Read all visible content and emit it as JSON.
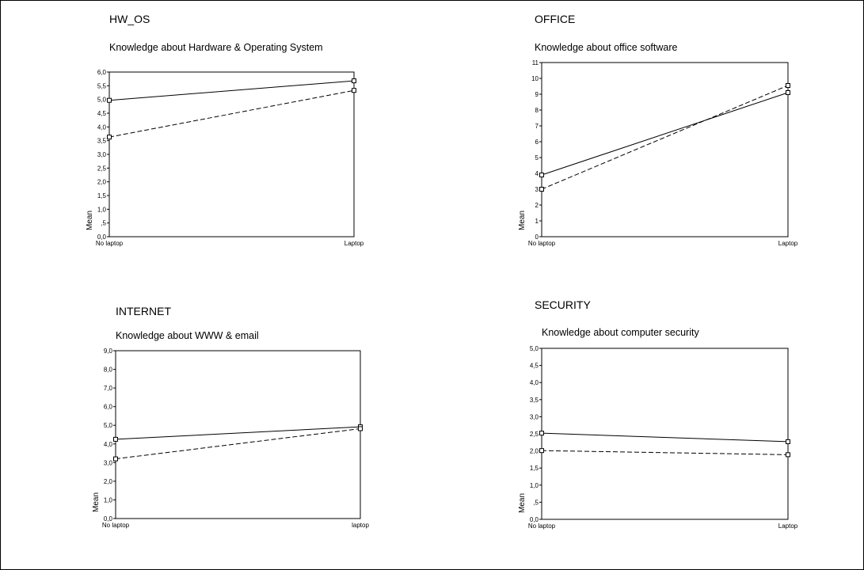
{
  "chart_data": [
    {
      "type": "line",
      "title": "HW_OS",
      "subtitle": "Knowledge about Hardware & Operating System",
      "ylabel": "Mean",
      "categories": [
        "No laptop",
        "Laptop"
      ],
      "ylim": [
        0,
        6
      ],
      "yticks": [
        "0,0",
        ",5",
        "1,0",
        "1,5",
        "2,0",
        "2,5",
        "3,0",
        "3,5",
        "4,0",
        "4,5",
        "5,0",
        "5,5",
        "6,0"
      ],
      "series": [
        {
          "style": "solid",
          "values": [
            4.97,
            5.68
          ]
        },
        {
          "style": "dashed",
          "values": [
            3.63,
            5.33
          ]
        }
      ]
    },
    {
      "type": "line",
      "title": "OFFICE",
      "subtitle": "Knowledge about office software",
      "ylabel": "Mean",
      "categories": [
        "No laptop",
        "Laptop"
      ],
      "ylim": [
        0,
        11
      ],
      "yticks": [
        "0",
        "1",
        "2",
        "3",
        "4",
        "5",
        "6",
        "7",
        "8",
        "9",
        "10",
        "11"
      ],
      "series": [
        {
          "style": "solid",
          "values": [
            3.9,
            9.1
          ]
        },
        {
          "style": "dashed",
          "values": [
            3.0,
            9.55
          ]
        }
      ]
    },
    {
      "type": "line",
      "title": "INTERNET",
      "subtitle": "Knowledge about WWW & email",
      "ylabel": "Mean",
      "categories": [
        "No laptop",
        "laptop"
      ],
      "ylim": [
        0,
        9
      ],
      "yticks": [
        "0,0",
        "1,0",
        "2,0",
        "3,0",
        "4,0",
        "5,0",
        "6,0",
        "7,0",
        "8,0",
        "9,0"
      ],
      "series": [
        {
          "style": "solid",
          "values": [
            4.25,
            4.92
          ]
        },
        {
          "style": "dashed",
          "values": [
            3.2,
            4.82
          ]
        }
      ]
    },
    {
      "type": "line",
      "title": "SECURITY",
      "subtitle": "Knowledge about computer security",
      "ylabel": "Mean",
      "categories": [
        "No laptop",
        "Laptop"
      ],
      "ylim": [
        0,
        5
      ],
      "yticks": [
        "0,0",
        ",5",
        "1,0",
        "1,5",
        "2,0",
        "2,5",
        "3,0",
        "3,5",
        "4,0",
        "4,5",
        "5,0"
      ],
      "series": [
        {
          "style": "solid",
          "values": [
            2.52,
            2.27
          ]
        },
        {
          "style": "dashed",
          "values": [
            2.01,
            1.89
          ]
        }
      ]
    }
  ]
}
